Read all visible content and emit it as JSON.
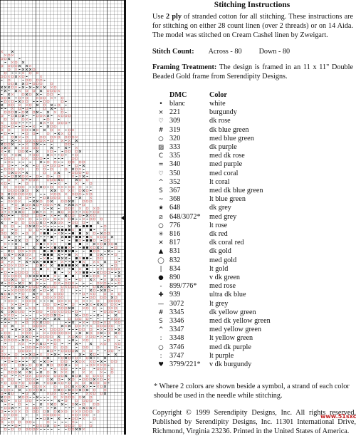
{
  "title": "Stitching Instructions",
  "intro": {
    "part1": "Use ",
    "bold": "2 ply",
    "part2": " of stranded cotton for all stitching. These instructions are for stitching on either 28 count linen (over 2 threads) or on 14 Aida. The model was stitched on Cream Cashel linen by Zweigart."
  },
  "stitch_count": {
    "label": "Stitch Count:",
    "across": "Across - 80",
    "down": "Down - 80"
  },
  "framing": {
    "label": "Framing Treatment:",
    "text": " The design is framed in an 11 x 11\" Double Beaded Gold frame from Serendipity Designs."
  },
  "key_headers": {
    "dmc": "DMC",
    "color": "Color"
  },
  "key_rows": [
    {
      "symbol": "•",
      "dmc": "blanc",
      "color": "white"
    },
    {
      "symbol": "⨯",
      "dmc": "221",
      "color": "burgundy"
    },
    {
      "symbol": "♡",
      "dmc": "309",
      "color": "dk rose"
    },
    {
      "symbol": "#",
      "dmc": "319",
      "color": "dk blue green"
    },
    {
      "symbol": "○",
      "dmc": "320",
      "color": "med blue green"
    },
    {
      "symbol": "▨",
      "dmc": "333",
      "color": "dk purple"
    },
    {
      "symbol": "C",
      "dmc": "335",
      "color": "med dk rose"
    },
    {
      "symbol": "=",
      "dmc": "340",
      "color": "med purple"
    },
    {
      "symbol": "♡",
      "dmc": "350",
      "color": "med coral"
    },
    {
      "symbol": "^",
      "dmc": "352",
      "color": "lt coral"
    },
    {
      "symbol": "S",
      "dmc": "367",
      "color": "med dk blue green"
    },
    {
      "symbol": "~",
      "dmc": "368",
      "color": "lt blue green"
    },
    {
      "symbol": "★",
      "dmc": "648",
      "color": "dk grey"
    },
    {
      "symbol": "⧄",
      "dmc": "648/3072*",
      "color": "med grey"
    },
    {
      "symbol": "○",
      "dmc": "776",
      "color": "lt rose"
    },
    {
      "symbol": "✳",
      "dmc": "816",
      "color": "dk red"
    },
    {
      "symbol": "✕",
      "dmc": "817",
      "color": "dk coral red"
    },
    {
      "symbol": "▲",
      "dmc": "831",
      "color": "dk gold"
    },
    {
      "symbol": "◯",
      "dmc": "832",
      "color": "med gold"
    },
    {
      "symbol": "|",
      "dmc": "834",
      "color": "lt gold"
    },
    {
      "symbol": "●",
      "dmc": "890",
      "color": "v dk green"
    },
    {
      "symbol": "-",
      "dmc": "899/776*",
      "color": "med rose"
    },
    {
      "symbol": "✚",
      "dmc": "939",
      "color": "ultra dk blue"
    },
    {
      "symbol": "—",
      "dmc": "3072",
      "color": "lt grey"
    },
    {
      "symbol": "#",
      "dmc": "3345",
      "color": "dk yellow green"
    },
    {
      "symbol": "S",
      "dmc": "3346",
      "color": "med dk yellow green"
    },
    {
      "symbol": "^",
      "dmc": "3347",
      "color": "med yellow green"
    },
    {
      "symbol": ":",
      "dmc": "3348",
      "color": "lt yellow green"
    },
    {
      "symbol": "○",
      "dmc": "3746",
      "color": "med dk purple"
    },
    {
      "symbol": ":",
      "dmc": "3747",
      "color": "lt purple"
    },
    {
      "symbol": "♥",
      "dmc": "3799/221*",
      "color": "v dk burgundy"
    }
  ],
  "footnote": "* Where 2 colors are shown beside a symbol, a strand of each color should be used in the needle while stitching.",
  "copyright": "Copyright © 1999 Serendipity Designs, Inc. All rights reserved. Published by Serendipity Designs, Inc. 11301 International Drive, Richmond, Virginia 23236. Printed in the United States of America.",
  "watermark": "www.51sxc.com",
  "colors": {
    "rose_marks": "#d98a8a",
    "dark_marks": "#222222",
    "border": "#111111"
  }
}
